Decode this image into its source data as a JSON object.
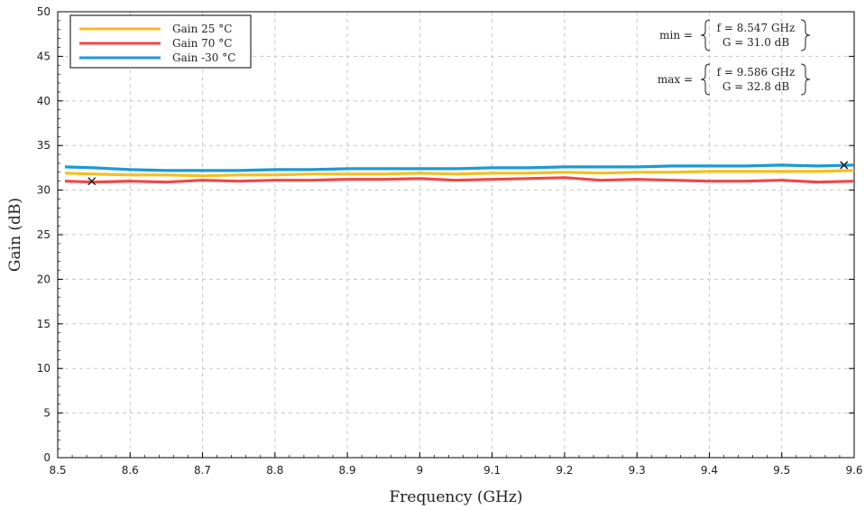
{
  "chart_data": {
    "type": "line",
    "title": "",
    "xlabel": "Frequency (GHz)",
    "ylabel": "Gain (dB)",
    "xlim": [
      8.5,
      9.6
    ],
    "ylim": [
      0,
      50
    ],
    "xticks": [
      "8.5",
      "8.6",
      "8.7",
      "8.8",
      "8.9",
      "9",
      "9.1",
      "9.2",
      "9.3",
      "9.4",
      "9.5",
      "9.6"
    ],
    "yticks": [
      "0",
      "5",
      "10",
      "15",
      "20",
      "25",
      "30",
      "35",
      "40",
      "45",
      "50"
    ],
    "grid": true,
    "legend_position": "top-left",
    "series": [
      {
        "name": "Gain 25 °C",
        "color": "#f5be1e",
        "x": [
          8.51,
          8.55,
          8.6,
          8.65,
          8.7,
          8.75,
          8.8,
          8.85,
          8.9,
          8.95,
          9.0,
          9.05,
          9.1,
          9.15,
          9.2,
          9.25,
          9.3,
          9.35,
          9.4,
          9.45,
          9.5,
          9.55,
          9.6
        ],
        "y": [
          31.9,
          31.8,
          31.7,
          31.7,
          31.6,
          31.7,
          31.7,
          31.8,
          31.8,
          31.8,
          31.9,
          31.8,
          31.9,
          31.9,
          32.0,
          31.9,
          32.0,
          32.0,
          32.1,
          32.1,
          32.1,
          32.1,
          32.2
        ]
      },
      {
        "name": "Gain 70 °C",
        "color": "#ee4848",
        "x": [
          8.51,
          8.55,
          8.6,
          8.65,
          8.7,
          8.75,
          8.8,
          8.85,
          8.9,
          8.95,
          9.0,
          9.05,
          9.1,
          9.15,
          9.2,
          9.25,
          9.3,
          9.35,
          9.4,
          9.45,
          9.5,
          9.55,
          9.6
        ],
        "y": [
          31.0,
          30.9,
          31.0,
          30.9,
          31.1,
          31.0,
          31.1,
          31.1,
          31.2,
          31.2,
          31.3,
          31.1,
          31.2,
          31.3,
          31.4,
          31.1,
          31.2,
          31.1,
          31.0,
          31.0,
          31.1,
          30.9,
          31.0
        ]
      },
      {
        "name": "Gain -30 °C",
        "color": "#1a9ad6",
        "x": [
          8.51,
          8.55,
          8.6,
          8.65,
          8.7,
          8.75,
          8.8,
          8.85,
          8.9,
          8.95,
          9.0,
          9.05,
          9.1,
          9.15,
          9.2,
          9.25,
          9.3,
          9.35,
          9.4,
          9.45,
          9.5,
          9.55,
          9.6
        ],
        "y": [
          32.6,
          32.5,
          32.3,
          32.2,
          32.2,
          32.2,
          32.3,
          32.3,
          32.4,
          32.4,
          32.4,
          32.4,
          32.5,
          32.5,
          32.6,
          32.6,
          32.6,
          32.7,
          32.7,
          32.7,
          32.8,
          32.7,
          32.8
        ]
      }
    ],
    "markers": [
      {
        "name": "min",
        "x": 8.547,
        "y": 31.0
      },
      {
        "name": "max",
        "x": 9.586,
        "y": 32.8
      }
    ],
    "annotations": {
      "min": {
        "label": "min =",
        "line1": "f = 8.547 GHz",
        "line2": "G = 31.0 dB"
      },
      "max": {
        "label": "max =",
        "line1": "f = 9.586 GHz",
        "line2": "G = 32.8 dB"
      }
    }
  }
}
